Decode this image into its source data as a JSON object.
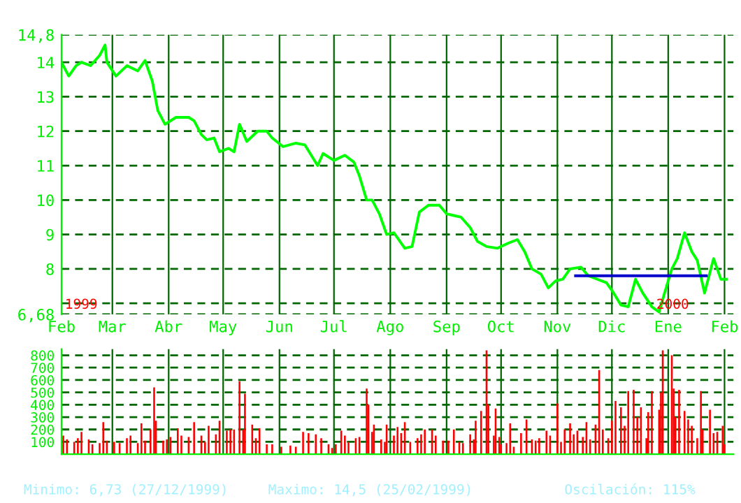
{
  "chart_data": [
    {
      "type": "line",
      "xlim": [
        "1999-02-01",
        "2000-02-06"
      ],
      "ylim": [
        6.68,
        14.8
      ],
      "xticks": [
        {
          "value": "1999-02-01",
          "label": "Feb"
        },
        {
          "value": "1999-03-01",
          "label": "Mar"
        },
        {
          "value": "1999-04-01",
          "label": "Abr"
        },
        {
          "value": "1999-05-01",
          "label": "May"
        },
        {
          "value": "1999-06-01",
          "label": "Jun"
        },
        {
          "value": "1999-07-01",
          "label": "Jul"
        },
        {
          "value": "1999-08-01",
          "label": "Ago"
        },
        {
          "value": "1999-09-01",
          "label": "Sep"
        },
        {
          "value": "1999-10-01",
          "label": "Oct"
        },
        {
          "value": "1999-11-01",
          "label": "Nov"
        },
        {
          "value": "1999-12-01",
          "label": "Dic"
        },
        {
          "value": "2000-01-01",
          "label": "Ene"
        },
        {
          "value": "2000-02-01",
          "label": "Feb"
        }
      ],
      "yticks": [
        {
          "value": 6.68,
          "label": "6,68"
        },
        {
          "value": 7,
          "label": null
        },
        8,
        9,
        10,
        11,
        12,
        13,
        14,
        {
          "value": 14.8,
          "label": "14,8"
        }
      ],
      "grid": true,
      "line_style": "solid",
      "marker": "none",
      "annotations": [
        "1999",
        "2000"
      ],
      "series": [
        {
          "color": "#00ff00",
          "x": [
            "1999-02-01",
            "1999-02-05",
            "1999-02-09",
            "1999-02-12",
            "1999-02-17",
            "1999-02-22",
            "1999-02-25",
            "1999-02-26",
            "1999-03-03",
            "1999-03-09",
            "1999-03-15",
            "1999-03-19",
            "1999-03-23",
            "1999-03-26",
            "1999-03-30",
            "1999-04-05",
            "1999-04-12",
            "1999-04-15",
            "1999-04-19",
            "1999-04-22",
            "1999-04-26",
            "1999-04-29",
            "1999-05-04",
            "1999-05-07",
            "1999-05-10",
            "1999-05-14",
            "1999-05-20",
            "1999-05-25",
            "1999-05-28",
            "1999-06-03",
            "1999-06-10",
            "1999-06-15",
            "1999-06-22",
            "1999-06-25",
            "1999-07-01",
            "1999-07-07",
            "1999-07-12",
            "1999-07-15",
            "1999-07-19",
            "1999-07-22",
            "1999-07-26",
            "1999-07-30",
            "1999-08-03",
            "1999-08-09",
            "1999-08-13",
            "1999-08-17",
            "1999-08-22",
            "1999-08-28",
            "1999-09-01",
            "1999-09-05",
            "1999-09-09",
            "1999-09-14",
            "1999-09-18",
            "1999-09-23",
            "1999-09-29",
            "1999-10-05",
            "1999-10-10",
            "1999-10-14",
            "1999-10-18",
            "1999-10-23",
            "1999-10-27",
            "1999-10-31",
            "1999-11-04",
            "1999-11-08",
            "1999-11-14",
            "1999-11-18",
            "1999-11-23",
            "1999-11-28",
            "1999-12-02",
            "1999-12-06",
            "1999-12-10",
            "1999-12-14",
            "1999-12-18",
            "1999-12-23",
            "1999-12-27",
            "1999-12-30",
            "2000-01-03",
            "2000-01-06",
            "2000-01-10",
            "2000-01-14",
            "2000-01-17",
            "2000-01-21",
            "2000-01-26",
            "2000-01-30",
            "2000-02-02"
          ],
          "values": [
            14.0,
            13.6,
            13.9,
            14.0,
            13.9,
            14.2,
            14.5,
            14.0,
            13.6,
            13.9,
            13.75,
            14.05,
            13.45,
            12.6,
            12.2,
            12.4,
            12.4,
            12.3,
            11.9,
            11.75,
            11.8,
            11.4,
            11.5,
            11.4,
            12.2,
            11.7,
            12.0,
            12.0,
            11.8,
            11.55,
            11.65,
            11.6,
            11.0,
            11.35,
            11.15,
            11.3,
            11.1,
            10.7,
            10.0,
            10.0,
            9.6,
            9.0,
            9.05,
            8.6,
            8.65,
            9.65,
            9.85,
            9.85,
            9.6,
            9.55,
            9.5,
            9.2,
            8.8,
            8.65,
            8.6,
            8.75,
            8.85,
            8.5,
            8.0,
            7.85,
            7.45,
            7.65,
            7.7,
            8.0,
            8.05,
            7.8,
            7.7,
            7.6,
            7.3,
            6.95,
            6.9,
            7.7,
            7.3,
            6.9,
            6.75,
            7.3,
            8.0,
            8.3,
            9.05,
            8.5,
            8.25,
            7.3,
            8.3,
            7.7,
            7.7
          ]
        },
        {
          "type": "line",
          "color": "#0000cc",
          "x": [
            "1999-11-11",
            "2000-01-22"
          ],
          "values": [
            7.8,
            7.8
          ]
        }
      ]
    },
    {
      "type": "bar",
      "xlim": [
        "1999-02-01",
        "2000-02-06"
      ],
      "ylim": [
        0,
        850
      ],
      "xticks": [
        "1999-02-01",
        "1999-03-01",
        "1999-04-01",
        "1999-05-01",
        "1999-06-01",
        "1999-07-01",
        "1999-08-01",
        "1999-09-01",
        "1999-10-01",
        "1999-11-01",
        "1999-12-01",
        "2000-01-01",
        "2000-02-01"
      ],
      "yticks": [
        100,
        200,
        300,
        400,
        500,
        600,
        700,
        800
      ],
      "grid": true,
      "tick_labels": "y",
      "color": "#ff0000",
      "x": [
        "1999-02-02",
        "1999-02-04",
        "1999-02-08",
        "1999-02-10",
        "1999-02-12",
        "1999-02-16",
        "1999-02-18",
        "1999-02-22",
        "1999-02-24",
        "1999-02-26",
        "1999-03-02",
        "1999-03-05",
        "1999-03-09",
        "1999-03-11",
        "1999-03-15",
        "1999-03-17",
        "1999-03-19",
        "1999-03-22",
        "1999-03-24",
        "1999-03-25",
        "1999-03-29",
        "1999-03-31",
        "1999-04-02",
        "1999-04-06",
        "1999-04-08",
        "1999-04-12",
        "1999-04-15",
        "1999-04-19",
        "1999-04-21",
        "1999-04-23",
        "1999-04-27",
        "1999-04-29",
        "1999-05-03",
        "1999-05-05",
        "1999-05-07",
        "1999-05-10",
        "1999-05-12",
        "1999-05-13",
        "1999-05-17",
        "1999-05-19",
        "1999-05-21",
        "1999-05-25",
        "1999-05-28",
        "1999-06-02",
        "1999-06-07",
        "1999-06-10",
        "1999-06-14",
        "1999-06-17",
        "1999-06-21",
        "1999-06-24",
        "1999-06-28",
        "1999-06-30",
        "1999-07-02",
        "1999-07-05",
        "1999-07-07",
        "1999-07-09",
        "1999-07-13",
        "1999-07-15",
        "1999-07-19",
        "1999-07-20",
        "1999-07-22",
        "1999-07-23",
        "1999-07-27",
        "1999-07-29",
        "1999-07-30",
        "1999-08-03",
        "1999-08-05",
        "1999-08-07",
        "1999-08-09",
        "1999-08-12",
        "1999-08-16",
        "1999-08-18",
        "1999-08-20",
        "1999-08-24",
        "1999-08-26",
        "1999-08-30",
        "1999-09-02",
        "1999-09-05",
        "1999-09-08",
        "1999-09-10",
        "1999-09-14",
        "1999-09-16",
        "1999-09-17",
        "1999-09-20",
        "1999-09-23",
        "1999-09-24",
        "1999-09-27",
        "1999-09-28",
        "1999-09-30",
        "1999-10-01",
        "1999-10-04",
        "1999-10-06",
        "1999-10-08",
        "1999-10-12",
        "1999-10-15",
        "1999-10-18",
        "1999-10-20",
        "1999-10-22",
        "1999-10-26",
        "1999-10-28",
        "1999-11-01",
        "1999-11-03",
        "1999-11-05",
        "1999-11-08",
        "1999-11-10",
        "1999-11-12",
        "1999-11-15",
        "1999-11-17",
        "1999-11-19",
        "1999-11-22",
        "1999-11-24",
        "1999-11-26",
        "1999-11-29",
        "1999-12-01",
        "1999-12-03",
        "1999-12-06",
        "1999-12-08",
        "1999-12-10",
        "1999-12-13",
        "1999-12-15",
        "1999-12-17",
        "1999-12-20",
        "1999-12-21",
        "1999-12-23",
        "1999-12-27",
        "1999-12-28",
        "1999-12-29",
        "2000-01-03",
        "2000-01-04",
        "2000-01-05",
        "2000-01-07",
        "2000-01-10",
        "2000-01-12",
        "2000-01-14",
        "2000-01-17",
        "2000-01-19",
        "2000-01-20",
        "2000-01-24",
        "2000-01-26",
        "2000-01-28",
        "2000-01-31",
        "2000-02-01"
      ],
      "values": [
        150,
        120,
        100,
        130,
        180,
        120,
        80,
        90,
        260,
        110,
        100,
        90,
        130,
        150,
        90,
        250,
        110,
        200,
        540,
        270,
        110,
        120,
        140,
        210,
        150,
        140,
        260,
        150,
        100,
        230,
        160,
        270,
        190,
        200,
        200,
        590,
        200,
        490,
        240,
        130,
        210,
        80,
        80,
        60,
        70,
        60,
        180,
        170,
        160,
        130,
        80,
        50,
        80,
        190,
        150,
        100,
        130,
        140,
        530,
        400,
        180,
        240,
        120,
        100,
        240,
        150,
        220,
        170,
        260,
        100,
        130,
        160,
        200,
        200,
        150,
        110,
        110,
        200,
        100,
        90,
        160,
        120,
        270,
        350,
        840,
        400,
        150,
        370,
        140,
        80,
        90,
        250,
        60,
        170,
        280,
        120,
        110,
        130,
        190,
        150,
        410,
        100,
        200,
        250,
        160,
        190,
        140,
        260,
        120,
        240,
        680,
        200,
        130,
        270,
        430,
        380,
        230,
        510,
        520,
        300,
        380,
        130,
        340,
        510,
        360,
        500,
        840,
        800,
        530,
        300,
        520,
        350,
        280,
        230,
        130,
        510,
        200,
        360,
        170,
        180,
        230,
        80
      ]
    },
    {
      "type": "other",
      "annotations": [
        "Minimo: 6,73 (27/12/1999)",
        "Maximo: 14,5 (25/02/1999)",
        "Oscilación: 115%"
      ]
    }
  ]
}
